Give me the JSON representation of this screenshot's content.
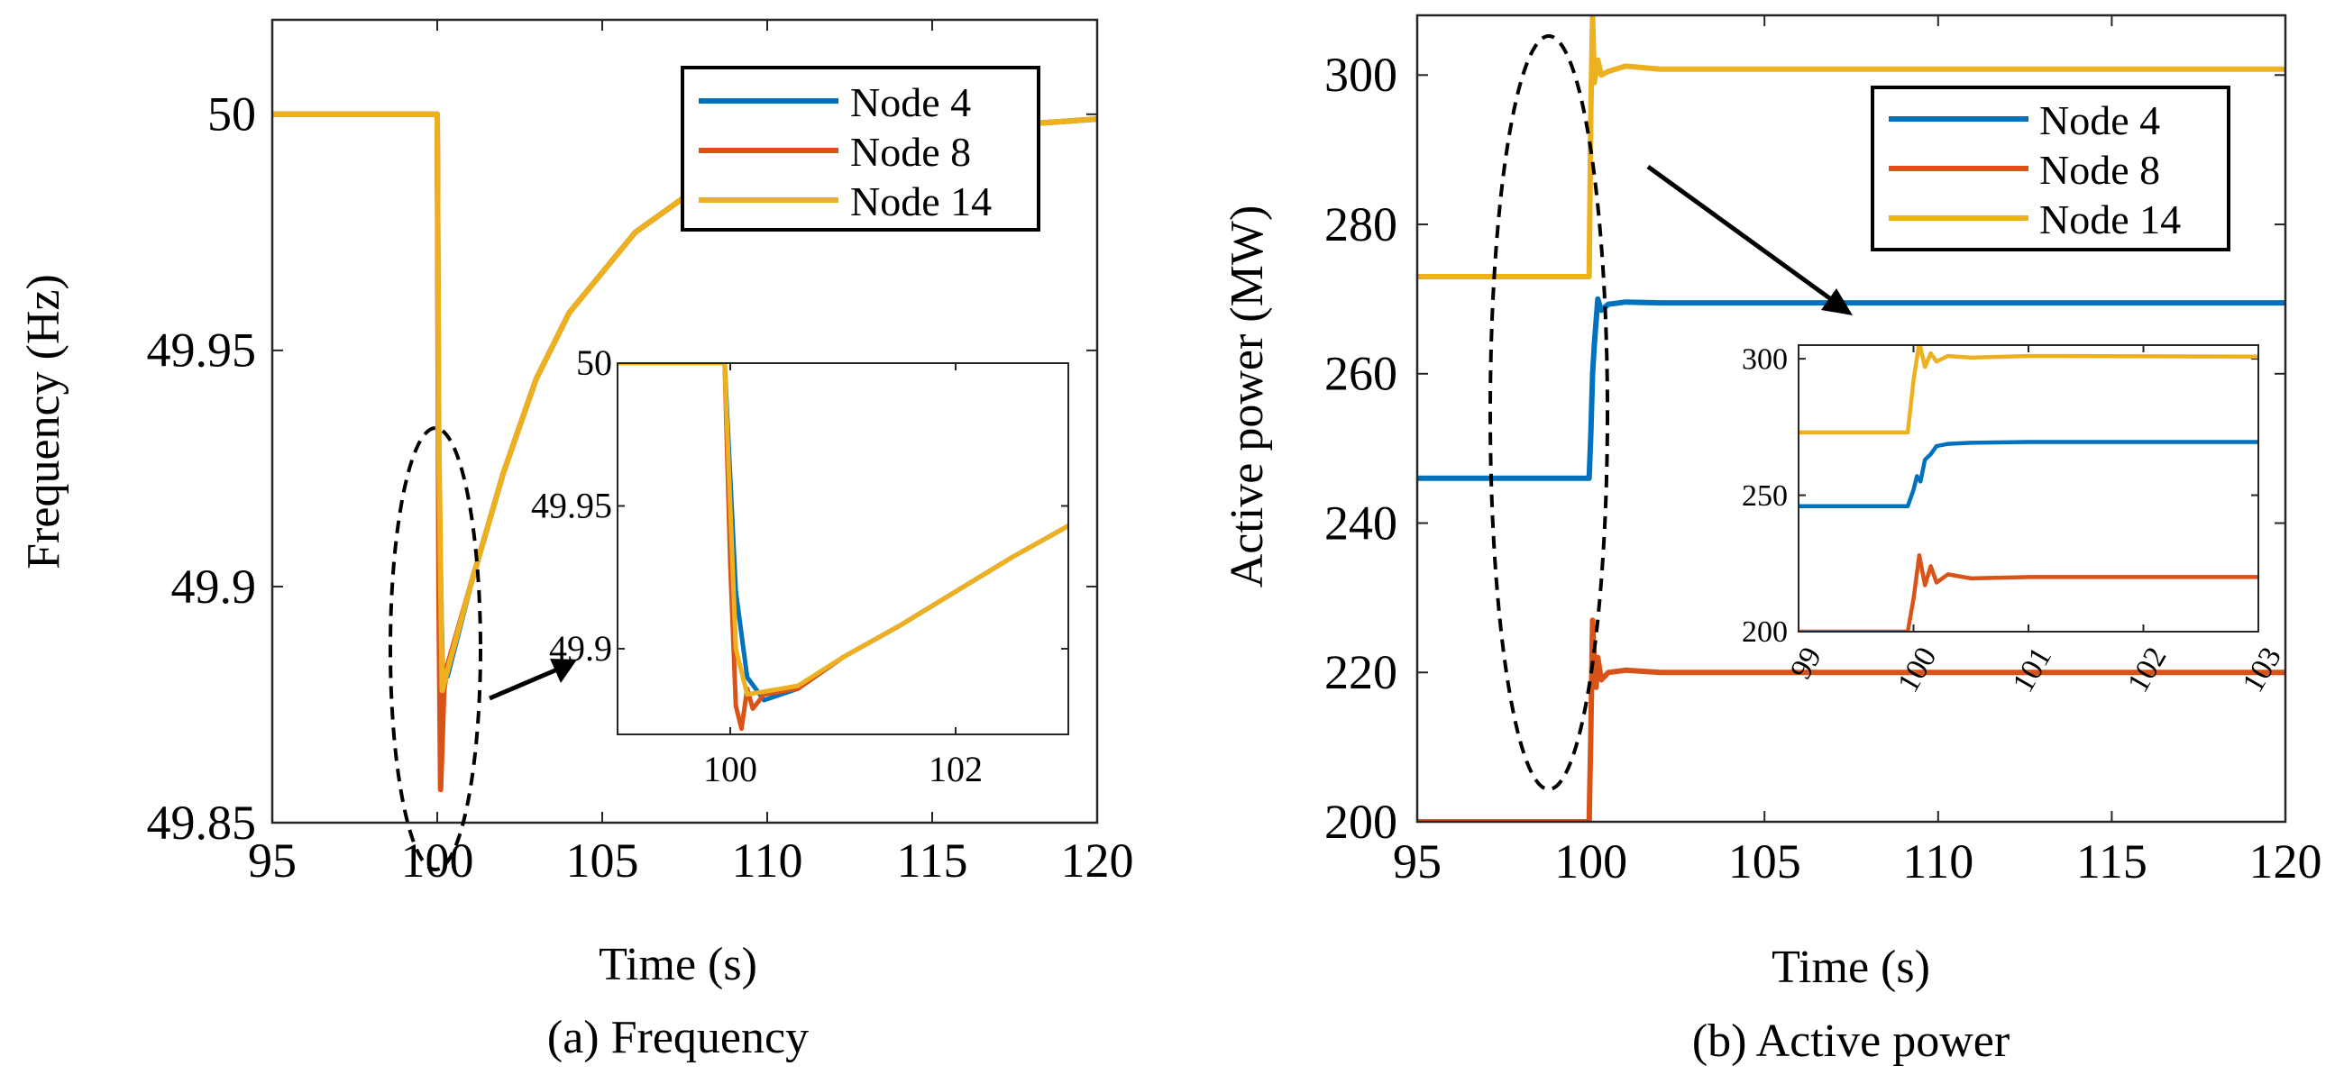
{
  "colors": {
    "node4": "#0072BD",
    "node8": "#D95319",
    "node14": "#EDB120",
    "axis": "#262626",
    "annotation": "#000000"
  },
  "chart_data": [
    {
      "type": "line",
      "caption": "(a) Frequency",
      "xlabel": "Time (s)",
      "ylabel": "Frequency (Hz)",
      "xlim": [
        95,
        120
      ],
      "ylim": [
        49.85,
        50.02
      ],
      "xticks": [
        95,
        100,
        105,
        110,
        115,
        120
      ],
      "xtick_labels": [
        "95",
        "100",
        "105",
        "110",
        "115",
        "120"
      ],
      "yticks": [
        49.85,
        49.9,
        49.95,
        50
      ],
      "ytick_labels": [
        "49.85",
        "49.9",
        "49.95",
        "50"
      ],
      "legend": [
        "Node 4",
        "Node 8",
        "Node 14"
      ],
      "legend_position": "top-right",
      "series": [
        {
          "name": "Node 4",
          "color_key": "node4",
          "x": [
            95,
            100,
            100.05,
            100.15,
            100.3,
            101,
            102,
            103,
            104,
            106,
            108,
            110,
            112,
            114,
            116,
            118,
            120
          ],
          "y": [
            50,
            50,
            49.92,
            49.883,
            49.881,
            49.9,
            49.924,
            49.944,
            49.958,
            49.975,
            49.985,
            49.991,
            49.994,
            49.996,
            49.997,
            49.998,
            49.999
          ]
        },
        {
          "name": "Node 8",
          "color_key": "node8",
          "x": [
            95,
            100,
            100.05,
            100.1,
            100.2,
            100.3,
            101,
            102,
            103,
            104,
            106,
            108,
            110,
            112,
            114,
            116,
            118,
            120
          ],
          "y": [
            50,
            50,
            49.9,
            49.857,
            49.878,
            49.883,
            49.9,
            49.924,
            49.944,
            49.958,
            49.975,
            49.985,
            49.991,
            49.994,
            49.996,
            49.997,
            49.998,
            49.999
          ]
        },
        {
          "name": "Node 14",
          "color_key": "node14",
          "x": [
            95,
            100,
            100.05,
            100.15,
            100.3,
            101,
            102,
            103,
            104,
            106,
            108,
            110,
            112,
            114,
            116,
            118,
            120
          ],
          "y": [
            50,
            50,
            49.93,
            49.878,
            49.882,
            49.9,
            49.924,
            49.944,
            49.958,
            49.975,
            49.985,
            49.991,
            49.994,
            49.996,
            49.997,
            49.998,
            49.999
          ]
        }
      ],
      "inset": {
        "xlim": [
          99,
          103
        ],
        "ylim": [
          49.87,
          50
        ],
        "xticks": [
          100,
          102
        ],
        "xtick_labels": [
          "100",
          "102"
        ],
        "yticks": [
          49.9,
          49.95,
          50
        ],
        "ytick_labels": [
          "49.9",
          "49.95",
          "50"
        ],
        "series": [
          {
            "name": "Node 4",
            "color_key": "node4",
            "x": [
              99,
              99.95,
              100,
              100.05,
              100.15,
              100.3,
              100.6,
              101,
              101.5,
              102,
              102.5,
              103
            ],
            "y": [
              50,
              50,
              49.96,
              49.92,
              49.89,
              49.882,
              49.886,
              49.897,
              49.908,
              49.92,
              49.932,
              49.943
            ]
          },
          {
            "name": "Node 8",
            "color_key": "node8",
            "x": [
              99,
              99.95,
              100,
              100.05,
              100.1,
              100.15,
              100.2,
              100.3,
              100.6,
              101,
              101.5,
              102,
              102.5,
              103
            ],
            "y": [
              50,
              50,
              49.93,
              49.88,
              49.872,
              49.886,
              49.879,
              49.884,
              49.886,
              49.897,
              49.908,
              49.92,
              49.932,
              49.943
            ]
          },
          {
            "name": "Node 14",
            "color_key": "node14",
            "x": [
              99,
              99.95,
              100,
              100.05,
              100.15,
              100.3,
              100.6,
              101,
              101.5,
              102,
              102.5,
              103
            ],
            "y": [
              50,
              50,
              49.95,
              49.9,
              49.884,
              49.885,
              49.887,
              49.897,
              49.908,
              49.92,
              49.932,
              49.943
            ]
          }
        ]
      }
    },
    {
      "type": "line",
      "caption": "(b) Active power",
      "xlabel": "Time (s)",
      "ylabel": "Active power (MW)",
      "xlim": [
        95,
        120
      ],
      "ylim": [
        200,
        308
      ],
      "xticks": [
        95,
        100,
        105,
        110,
        115,
        120
      ],
      "xtick_labels": [
        "95",
        "100",
        "105",
        "110",
        "115",
        "120"
      ],
      "yticks": [
        200,
        220,
        240,
        260,
        280,
        300
      ],
      "ytick_labels": [
        "200",
        "220",
        "240",
        "260",
        "280",
        "300"
      ],
      "legend": [
        "Node 4",
        "Node 8",
        "Node 14"
      ],
      "legend_position": "top-right",
      "series": [
        {
          "name": "Node 4",
          "color_key": "node4",
          "x": [
            95,
            99.95,
            100,
            100.05,
            100.1,
            100.2,
            100.3,
            100.5,
            101,
            102,
            120
          ],
          "y": [
            246,
            246,
            252,
            260,
            264,
            270,
            268.5,
            269.3,
            269.6,
            269.5,
            269.5
          ]
        },
        {
          "name": "Node 8",
          "color_key": "node8",
          "x": [
            95,
            99.95,
            100,
            100.05,
            100.1,
            100.15,
            100.2,
            100.3,
            100.5,
            101,
            102,
            120
          ],
          "y": [
            200,
            200,
            212,
            227,
            221,
            218,
            222,
            219,
            220,
            220.3,
            220,
            220
          ]
        },
        {
          "name": "Node 14",
          "color_key": "node14",
          "x": [
            95,
            99.95,
            100,
            100.05,
            100.1,
            100.2,
            100.3,
            100.5,
            101,
            102,
            120
          ],
          "y": [
            273,
            273,
            295,
            308,
            299,
            302,
            300,
            300.5,
            301.2,
            300.8,
            300.8
          ]
        }
      ],
      "inset": {
        "xlim": [
          99,
          103
        ],
        "ylim": [
          200,
          305
        ],
        "xticks": [
          99,
          100,
          101,
          102,
          103
        ],
        "xtick_labels": [
          "99",
          "100",
          "101",
          "102",
          "103"
        ],
        "yticks": [
          200,
          250,
          300
        ],
        "ytick_labels": [
          "200",
          "250",
          "300"
        ],
        "series": [
          {
            "name": "Node 4",
            "color_key": "node4",
            "x": [
              99,
              99.95,
              100,
              100.03,
              100.06,
              100.1,
              100.15,
              100.2,
              100.3,
              100.5,
              101,
              103
            ],
            "y": [
              246,
              246,
              252,
              257,
              255,
              263,
              265,
              268,
              268.8,
              269.2,
              269.5,
              269.5
            ]
          },
          {
            "name": "Node 8",
            "color_key": "node8",
            "x": [
              99,
              99.95,
              100,
              100.05,
              100.1,
              100.15,
              100.2,
              100.3,
              100.5,
              101,
              103
            ],
            "y": [
              200,
              200,
              212,
              228,
              217,
              224,
              218,
              221,
              219.5,
              220,
              220
            ]
          },
          {
            "name": "Node 14",
            "color_key": "node14",
            "x": [
              99,
              99.95,
              100,
              100.05,
              100.1,
              100.15,
              100.2,
              100.3,
              100.5,
              101,
              103
            ],
            "y": [
              273,
              273,
              292,
              306,
              297,
              302,
              299,
              301,
              300.4,
              301,
              300.8
            ]
          }
        ]
      }
    }
  ]
}
